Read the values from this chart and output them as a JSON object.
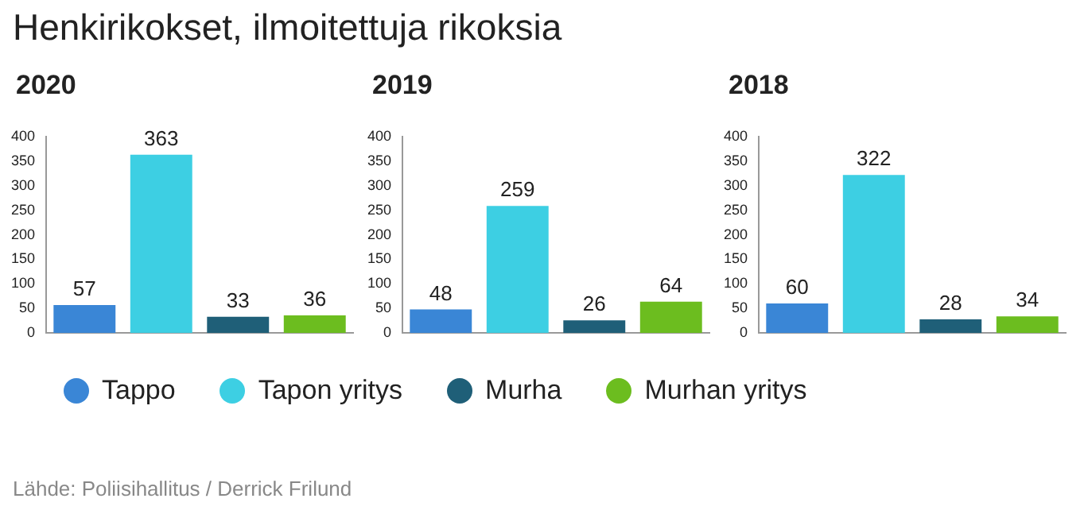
{
  "chart_data": [
    {
      "type": "bar",
      "title": "2020",
      "categories": [
        null,
        null,
        null,
        null
      ],
      "series": [
        {
          "name": "Tappo",
          "color": "#3a86d6",
          "values": [
            57,
            null,
            null,
            null
          ]
        },
        {
          "name": "Tapon yritys",
          "color": "#3dcfe3",
          "values": [
            null,
            363,
            null,
            null
          ]
        },
        {
          "name": "Murha",
          "color": "#1f5f78",
          "values": [
            null,
            null,
            33,
            null
          ]
        },
        {
          "name": "Murhan yritys",
          "color": "#6cbd1f",
          "values": [
            null,
            null,
            null,
            36
          ]
        }
      ],
      "ylim": [
        0,
        400
      ],
      "yticks": [
        0,
        50,
        100,
        150,
        200,
        250,
        300,
        350,
        400
      ],
      "data_labels": true,
      "tick_labels": "y",
      "legend": "bottom",
      "annotations": [
        "Henkirikokset, ilmoitettuja rikoksia",
        "Lähde: Poliisihallitus / Derrick Frilund"
      ]
    },
    {
      "type": "bar",
      "title": "2019",
      "categories": [
        null,
        null,
        null,
        null
      ],
      "series": [
        {
          "color": "#3a86d6",
          "values": [
            48,
            null,
            null,
            null
          ]
        },
        {
          "color": "#3dcfe3",
          "values": [
            null,
            259,
            null,
            null
          ]
        },
        {
          "color": "#1f5f78",
          "values": [
            null,
            null,
            26,
            null
          ]
        },
        {
          "color": "#6cbd1f",
          "values": [
            null,
            null,
            null,
            64
          ]
        }
      ],
      "ylim": [
        0,
        400
      ],
      "yticks": [
        0,
        50,
        100,
        150,
        200,
        250,
        300,
        350,
        400
      ],
      "data_labels": true,
      "tick_labels": "y"
    },
    {
      "type": "bar",
      "title": "2018",
      "categories": [
        null,
        null,
        null,
        null
      ],
      "series": [
        {
          "color": "#3a86d6",
          "values": [
            60,
            null,
            null,
            null
          ]
        },
        {
          "color": "#3dcfe3",
          "values": [
            null,
            322,
            null,
            null
          ]
        },
        {
          "color": "#1f5f78",
          "values": [
            null,
            null,
            28,
            null
          ]
        },
        {
          "color": "#6cbd1f",
          "values": [
            null,
            null,
            null,
            34
          ]
        }
      ],
      "ylim": [
        0,
        400
      ],
      "yticks": [
        0,
        50,
        100,
        150,
        200,
        250,
        300,
        350,
        400
      ],
      "data_labels": true,
      "tick_labels": "y"
    }
  ]
}
